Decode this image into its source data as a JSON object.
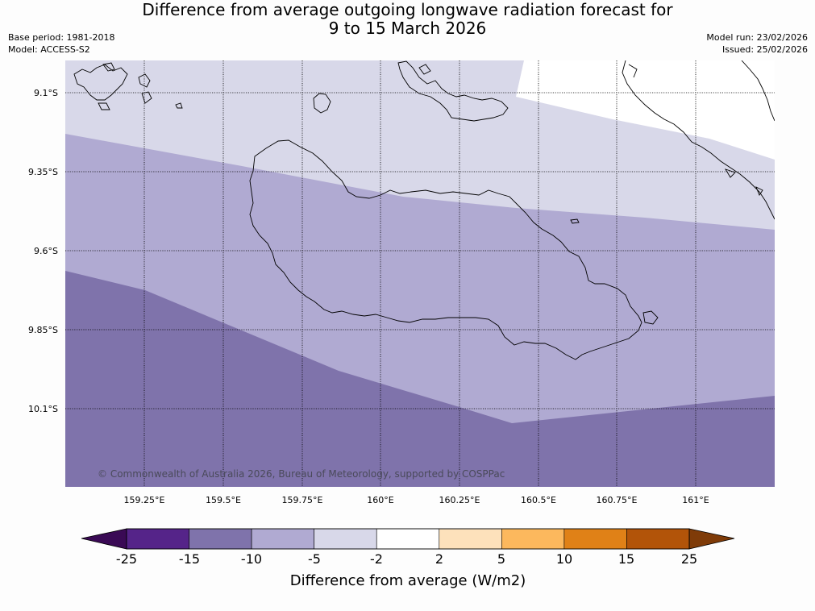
{
  "title": {
    "line1": "Difference from average outgoing longwave radiation forecast for",
    "line2": "9 to 15 March 2026"
  },
  "meta": {
    "base_period": "Base period: 1981-2018",
    "model": "Model: ACCESS-S2",
    "model_run": "Model run: 23/02/2026",
    "issued": "Issued: 25/02/2026"
  },
  "map": {
    "lat_labels": [
      "9.1°S",
      "9.35°S",
      "9.6°S",
      "9.85°S",
      "10.1°S"
    ],
    "lon_labels": [
      "159.25°E",
      "159.5°E",
      "159.75°E",
      "160°E",
      "160.25°E",
      "160.5°E",
      "160.75°E",
      "161°E"
    ],
    "copyright": "© Commonwealth of Australia 2026, Bureau of Meteorology, supported by COSPPac",
    "band_colors": {
      "from_-5_to_-2": "#d8d8e9",
      "from_-10_to_-5": "#b0aad2",
      "from_-15_to_-10": "#7f73ab",
      "from_-2_to_2": "#ffffff"
    }
  },
  "legend": {
    "tick_labels": [
      "-25",
      "-15",
      "-10",
      "-5",
      "-2",
      "2",
      "5",
      "10",
      "15",
      "25"
    ],
    "colors": [
      "#552489",
      "#7f73ab",
      "#b0aad2",
      "#d8d8e9",
      "#ffffff",
      "#fde1bb",
      "#fcb85d",
      "#e08117",
      "#b25409"
    ],
    "under_color": "#3a0a55",
    "over_color": "#7f3b08",
    "label": "Difference from average (W/m2)"
  }
}
